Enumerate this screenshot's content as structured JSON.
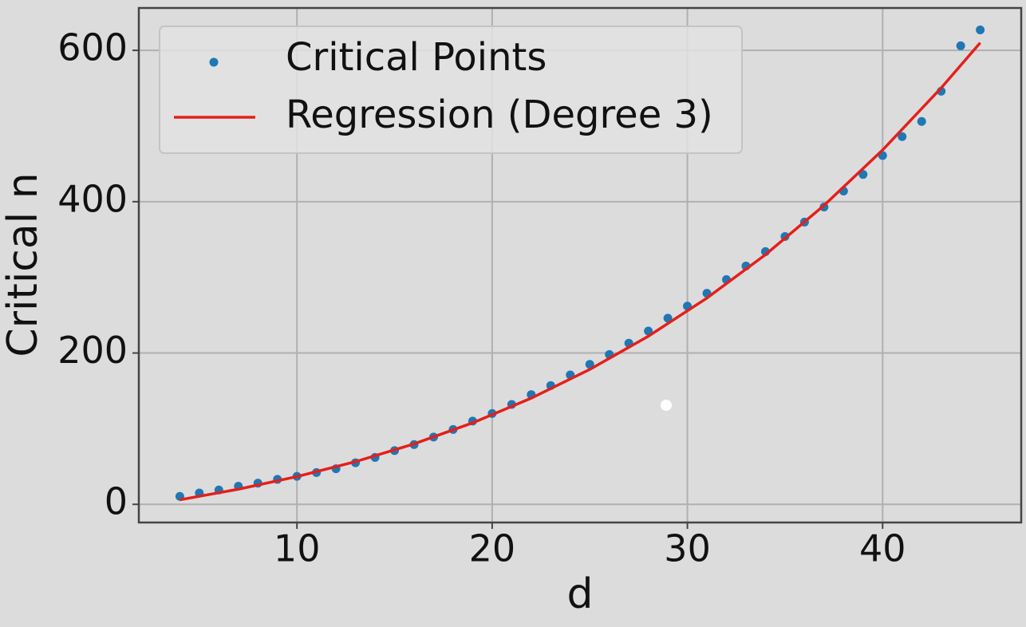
{
  "chart_data": {
    "type": "scatter",
    "xlabel": "d",
    "ylabel": "Critical n",
    "xlim": [
      1.9,
      47.1
    ],
    "ylim": [
      -24,
      656
    ],
    "xticks": [
      10,
      20,
      30,
      40
    ],
    "yticks": [
      0,
      200,
      400,
      600
    ],
    "grid": true,
    "legend": "upper left",
    "series": [
      {
        "name": "Critical Points",
        "color": "#1f77b4",
        "style": "points",
        "x": [
          4,
          5,
          6,
          7,
          8,
          9,
          10,
          11,
          12,
          13,
          14,
          15,
          16,
          17,
          18,
          19,
          20,
          21,
          22,
          23,
          24,
          25,
          26,
          27,
          28,
          29,
          30,
          31,
          32,
          33,
          34,
          35,
          36,
          37,
          38,
          39,
          40,
          41,
          42,
          43,
          44,
          45
        ],
        "values": [
          10.5,
          15,
          19,
          24,
          28,
          33,
          37,
          42,
          47,
          55,
          62,
          71,
          79,
          89,
          99,
          110,
          120,
          132,
          145,
          157,
          171,
          185,
          198,
          213,
          229,
          246,
          262,
          279,
          297,
          315,
          334,
          354,
          373,
          393,
          414,
          436,
          461,
          486,
          506,
          546,
          606,
          627
        ]
      },
      {
        "name": "Regression (Degree 3)",
        "color": "#e3201b",
        "style": "line",
        "x": [
          4,
          7,
          10,
          13,
          16,
          19,
          22,
          25,
          28,
          31,
          34,
          37,
          40,
          43,
          45
        ],
        "values": [
          6,
          20,
          36.7,
          56.4,
          79.9,
          107.7,
          140.3,
          178.3,
          222.2,
          272.6,
          330,
          395.1,
          468.3,
          550.3,
          610
        ]
      }
    ]
  }
}
